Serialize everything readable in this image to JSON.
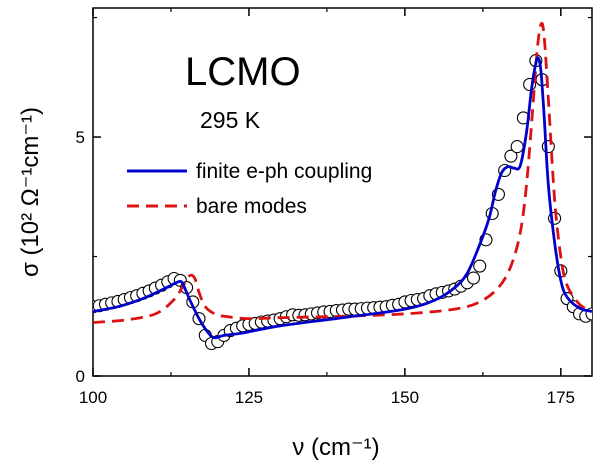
{
  "chart_data": {
    "type": "line",
    "title": "",
    "annotations": [
      "LCMO",
      "295 K"
    ],
    "xlabel": "ν (cm⁻¹)",
    "ylabel": "σ (10² Ω⁻¹cm⁻¹)",
    "xlim": [
      100,
      180
    ],
    "ylim": [
      0,
      7.7
    ],
    "xticks": [
      100,
      125,
      150,
      175
    ],
    "yticks": [
      0,
      5
    ],
    "xtick_labels": [
      "100",
      "125",
      "150",
      "175"
    ],
    "ytick_labels": [
      "0",
      "5"
    ],
    "legend_position": "upper-left",
    "grid": false,
    "series": [
      {
        "name": "finite e-ph coupling",
        "style": "solid",
        "color": "#0000cc",
        "x": [
          100,
          104,
          108,
          111,
          113,
          114,
          114.5,
          115.5,
          117,
          118.5,
          119.5,
          121,
          124,
          130,
          140,
          150,
          155,
          158,
          160,
          162,
          163.5,
          164.5,
          165.5,
          166.5,
          167.5,
          168.5,
          169.5,
          170.3,
          171,
          171.4,
          171.8,
          172.3,
          173,
          174,
          175,
          176,
          178,
          180
        ],
        "y": [
          1.35,
          1.45,
          1.62,
          1.8,
          1.93,
          1.98,
          1.9,
          1.6,
          1.2,
          0.9,
          0.8,
          0.85,
          0.9,
          1.05,
          1.22,
          1.4,
          1.6,
          1.85,
          2.15,
          2.75,
          3.3,
          3.85,
          4.25,
          4.38,
          4.35,
          4.4,
          5.1,
          6.0,
          6.55,
          6.65,
          6.4,
          5.5,
          4.0,
          2.8,
          2.0,
          1.65,
          1.42,
          1.35
        ]
      },
      {
        "name": "bare modes",
        "style": "dashed",
        "color": "#dd1111",
        "x": [
          100,
          105,
          110,
          113,
          114.5,
          115.5,
          116.3,
          117,
          118,
          119.5,
          121,
          125,
          130,
          140,
          150,
          158,
          162,
          165,
          167,
          168.5,
          169.5,
          170.5,
          171.2,
          171.8,
          172.3,
          173,
          174,
          175,
          176,
          178,
          180
        ],
        "y": [
          1.12,
          1.17,
          1.3,
          1.6,
          1.9,
          2.1,
          2.05,
          1.75,
          1.45,
          1.3,
          1.25,
          1.2,
          1.22,
          1.25,
          1.3,
          1.4,
          1.55,
          1.85,
          2.3,
          3.0,
          4.0,
          5.6,
          6.8,
          7.35,
          7.15,
          5.8,
          3.7,
          2.5,
          1.9,
          1.5,
          1.35
        ]
      },
      {
        "name": "",
        "style": "markers",
        "marker": "open-circle",
        "color": "#000000",
        "x": [
          100,
          101,
          102,
          103,
          104,
          105,
          106,
          107,
          108,
          109,
          110,
          111,
          112,
          113,
          114,
          115,
          116,
          117,
          118,
          119,
          120,
          121,
          122,
          123,
          124,
          125,
          126,
          127,
          128,
          129,
          130,
          131,
          132,
          133,
          134,
          135,
          136,
          137,
          138,
          139,
          140,
          141,
          142,
          143,
          144,
          145,
          146,
          147,
          148,
          149,
          150,
          151,
          152,
          153,
          154,
          155,
          156,
          157,
          158,
          159,
          160,
          161,
          162,
          163,
          164,
          165,
          166,
          167,
          168,
          169,
          170,
          171,
          172,
          173,
          174,
          175,
          176,
          177,
          178,
          179,
          180
        ],
        "y": [
          1.45,
          1.47,
          1.5,
          1.53,
          1.56,
          1.6,
          1.64,
          1.68,
          1.73,
          1.78,
          1.84,
          1.9,
          1.97,
          2.04,
          2.0,
          1.85,
          1.55,
          1.2,
          0.85,
          0.68,
          0.72,
          0.85,
          0.95,
          1.0,
          1.05,
          1.08,
          1.1,
          1.13,
          1.15,
          1.17,
          1.2,
          1.24,
          1.28,
          1.27,
          1.28,
          1.3,
          1.32,
          1.34,
          1.35,
          1.37,
          1.38,
          1.4,
          1.4,
          1.41,
          1.42,
          1.43,
          1.44,
          1.45,
          1.48,
          1.5,
          1.55,
          1.58,
          1.6,
          1.62,
          1.68,
          1.72,
          1.75,
          1.78,
          1.82,
          1.88,
          1.95,
          2.05,
          2.3,
          2.85,
          3.4,
          3.8,
          4.3,
          4.6,
          4.8,
          5.4,
          6.1,
          6.6,
          6.2,
          4.8,
          3.3,
          2.2,
          1.62,
          1.45,
          1.3,
          1.25,
          1.3
        ]
      }
    ]
  }
}
